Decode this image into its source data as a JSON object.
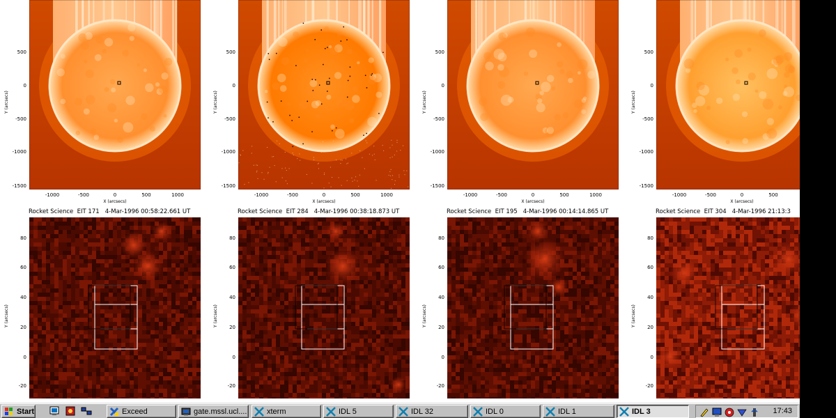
{
  "colors": {
    "sun_core": "#ffb060",
    "sun_mid": "#ff8a1c",
    "sun_edge": "#ff6000",
    "background_low": "#c83c00",
    "zoom_dark": "#3a0800",
    "zoom_mid": "#7a1604",
    "zoom_bright": "#c83010",
    "taskbar": "#c0c0c0"
  },
  "full_disk_panels": [
    {
      "id": "eit171",
      "x_ticks": [
        "-1000",
        "-500",
        "0",
        "500",
        "1000"
      ],
      "y_ticks": [
        "500",
        "0",
        "-500",
        "-1000",
        "-1500"
      ],
      "x_label": "X (arcsecs)",
      "y_label": "Y (arcsecs)"
    },
    {
      "id": "eit284",
      "x_ticks": [
        "-1000",
        "-500",
        "0",
        "500",
        "1000"
      ],
      "y_ticks": [
        "500",
        "0",
        "-500",
        "-1000",
        "-1500"
      ],
      "x_label": "X (arcsecs)",
      "y_label": "Y (arcsecs)"
    },
    {
      "id": "eit195",
      "x_ticks": [
        "-1000",
        "-500",
        "0",
        "500",
        "1000"
      ],
      "y_ticks": [
        "500",
        "0",
        "-500",
        "-1000",
        "-1500"
      ],
      "x_label": "X (arcsecs)",
      "y_label": "Y (arcsecs)"
    },
    {
      "id": "eit304",
      "x_ticks": [
        "-1000",
        "-500",
        "0",
        "500"
      ],
      "y_ticks": [
        "500",
        "0",
        "-500",
        "-1000",
        "-1500"
      ],
      "x_label": "X (arcsecs)",
      "y_label": "Y (arcsecs)"
    }
  ],
  "zoom_panels": [
    {
      "title": "Rocket Science  EIT 171   4-Mar-1996 00:58:22.661 UT",
      "y_ticks": [
        "80",
        "60",
        "40",
        "20",
        "0",
        "-20"
      ],
      "y_label": "Y (arcsecs)"
    },
    {
      "title": "Rocket Science  EIT 284   4-Mar-1996 00:38:18.873 UT",
      "y_ticks": [
        "80",
        "60",
        "40",
        "20",
        "0",
        "-20"
      ],
      "y_label": "Y (arcsecs)"
    },
    {
      "title": "Rocket Science  EIT 195   4-Mar-1996 00:14:14.865 UT",
      "y_ticks": [
        "80",
        "60",
        "40",
        "20",
        "0",
        "-20"
      ],
      "y_label": "Y (arcsecs)"
    },
    {
      "title": "Rocket Science  EIT 304   4-Mar-1996 21:13:3",
      "y_ticks": [
        "80",
        "60",
        "40",
        "20",
        "0",
        "-20"
      ],
      "y_label": "Y (arcsecs)"
    }
  ],
  "taskbar": {
    "start_label": "Start",
    "quick_launch": [
      "desktop-icon",
      "app-icon",
      "network-icon"
    ],
    "tasks": [
      {
        "label": "Exceed",
        "icon": "exceed-icon",
        "active": false
      },
      {
        "label": "gate.mssl.ucl....",
        "icon": "terminal-icon",
        "active": false
      },
      {
        "label": "xterm",
        "icon": "x-icon",
        "active": false
      },
      {
        "label": "IDL 5",
        "icon": "x-icon",
        "active": false
      },
      {
        "label": "IDL 32",
        "icon": "x-icon",
        "active": false
      },
      {
        "label": "IDL 0",
        "icon": "x-icon",
        "active": false
      },
      {
        "label": "IDL 1",
        "icon": "x-icon",
        "active": false
      },
      {
        "label": "IDL 3",
        "icon": "x-icon",
        "active": true
      }
    ],
    "tray_icons": [
      "pencil-icon",
      "monitor-icon",
      "stop-icon",
      "volume-icon",
      "pen-icon"
    ],
    "clock": "17:43"
  }
}
